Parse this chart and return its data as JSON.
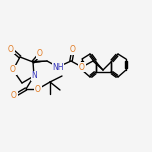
{
  "bg_color": "#f5f5f5",
  "atom_colors": {
    "O": "#e07820",
    "N": "#3535bb",
    "C": "#000000"
  },
  "line_color": "#000000",
  "line_width": 1.0,
  "fig_size": [
    1.52,
    1.52
  ],
  "dpi": 100
}
